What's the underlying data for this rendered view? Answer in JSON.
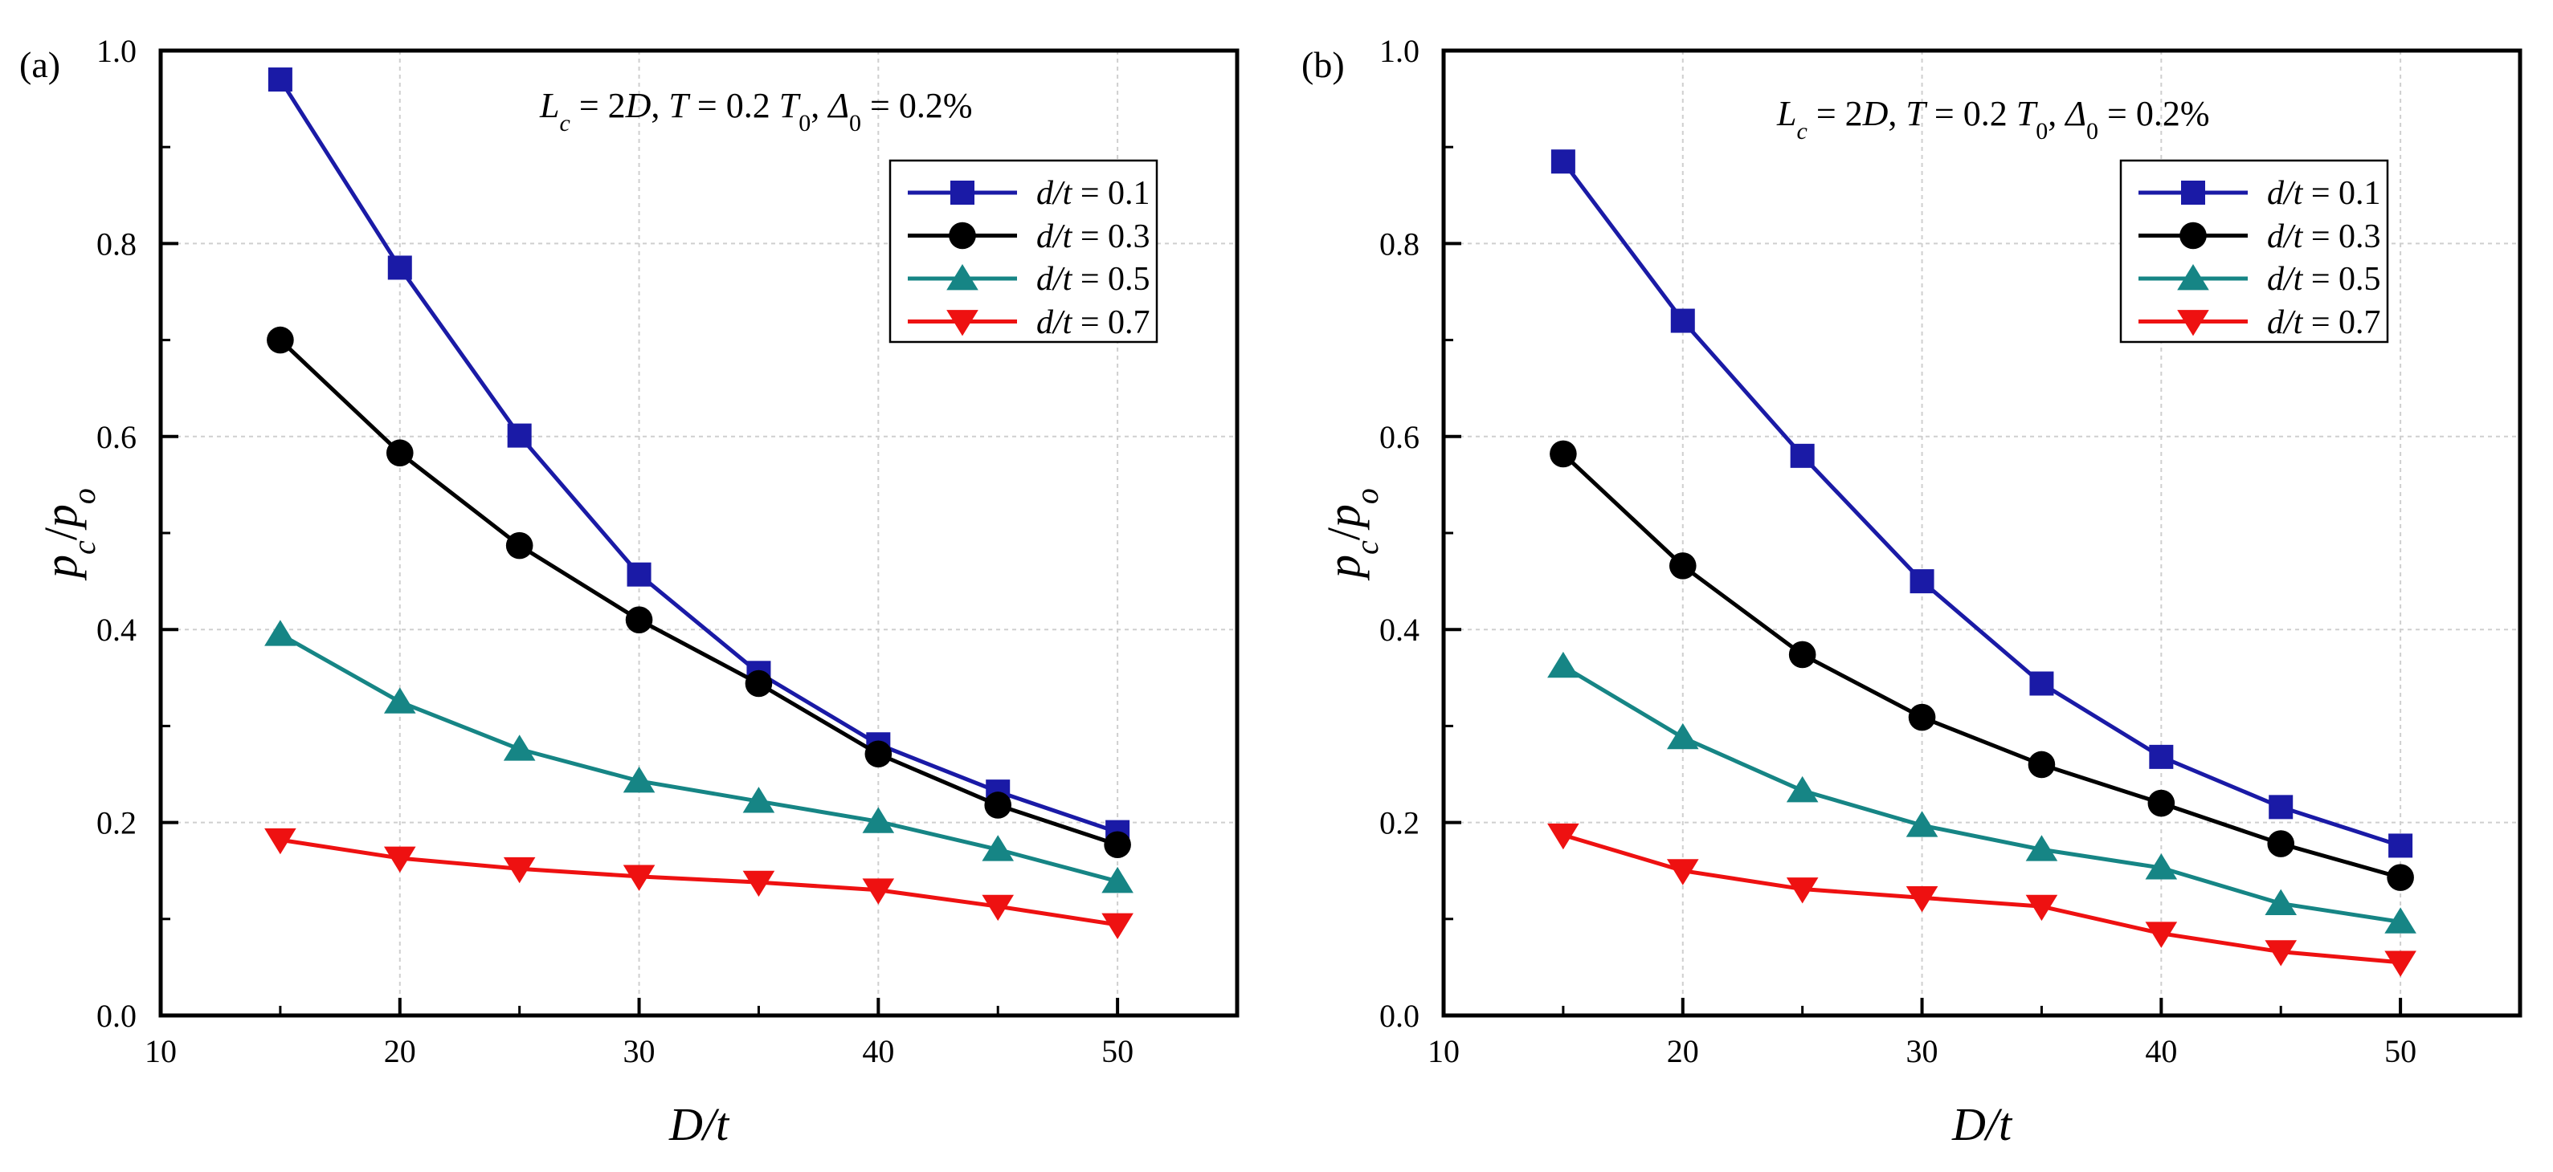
{
  "chart_data": [
    {
      "type": "line",
      "panel_label": "(a)",
      "annotation": {
        "l": "L",
        "c": "c",
        "eq1": " = 2",
        "d": "D",
        "comma1": ",  ",
        "t": "T",
        "eq2": " = 0.2 ",
        "t2": "T",
        "zero": "0",
        "comma2": ", ",
        "delta": "Δ",
        "zero2": "0",
        "eq3": " = 0.2%"
      },
      "xlabel": "D/t",
      "ylabel": {
        "p": "p",
        "c": "c",
        "slash": "/",
        "p2": "p",
        "o": "o"
      },
      "xlim": [
        10,
        55
      ],
      "ylim": [
        0,
        1.0
      ],
      "xticks": [
        10,
        20,
        30,
        40,
        50
      ],
      "xtick_labels": [
        "10",
        "20",
        "30",
        "40",
        "50"
      ],
      "yticks": [
        0,
        0.2,
        0.4,
        0.6,
        0.8,
        1.0
      ],
      "ytick_labels": [
        "0.0",
        "0.2",
        "0.4",
        "0.6",
        "0.8",
        "1.0"
      ],
      "grid": true,
      "legend_position": "top-right",
      "x": [
        15,
        20,
        25,
        30,
        35,
        40,
        45,
        50
      ],
      "series": [
        {
          "name": "d/t = 0.1",
          "name_var": "d/t",
          "name_val": " = 0.1",
          "marker": "square",
          "color": "#1a1aa6",
          "values": [
            0.97,
            0.775,
            0.601,
            0.457,
            0.355,
            0.281,
            0.232,
            0.19
          ]
        },
        {
          "name": "d/t = 0.3",
          "name_var": "d/t",
          "name_val": " = 0.3",
          "marker": "circle",
          "color": "#000000",
          "values": [
            0.7,
            0.583,
            0.487,
            0.41,
            0.344,
            0.271,
            0.218,
            0.177
          ]
        },
        {
          "name": "d/t = 0.5",
          "name_var": "d/t",
          "name_val": " = 0.5",
          "marker": "triangle-up",
          "color": "#168585",
          "values": [
            0.395,
            0.325,
            0.276,
            0.243,
            0.222,
            0.201,
            0.172,
            0.139
          ]
        },
        {
          "name": "d/t = 0.7",
          "name_var": "d/t",
          "name_val": " = 0.7",
          "marker": "triangle-down",
          "color": "#ee1111",
          "values": [
            0.182,
            0.163,
            0.152,
            0.144,
            0.138,
            0.13,
            0.113,
            0.094
          ]
        }
      ]
    },
    {
      "type": "line",
      "panel_label": "(b)",
      "annotation": {
        "l": "L",
        "c": "c",
        "eq1": " = 2",
        "d": "D",
        "comma1": ",  ",
        "t": "T",
        "eq2": " = 0.2 ",
        "t2": "T",
        "zero": "0",
        "comma2": ", ",
        "delta": "Δ",
        "zero2": "0",
        "eq3": " = 0.2%"
      },
      "xlabel": "D/t",
      "ylabel": {
        "p": "p",
        "c": "c",
        "slash": "/",
        "p2": "p",
        "o": "o"
      },
      "xlim": [
        10,
        55
      ],
      "ylim": [
        0,
        1.0
      ],
      "xticks": [
        10,
        20,
        30,
        40,
        50
      ],
      "xtick_labels": [
        "10",
        "20",
        "30",
        "40",
        "50"
      ],
      "yticks": [
        0,
        0.2,
        0.4,
        0.6,
        0.8,
        1.0
      ],
      "ytick_labels": [
        "0.0",
        "0.2",
        "0.4",
        "0.6",
        "0.8",
        "1.0"
      ],
      "grid": true,
      "legend_position": "top-right",
      "x": [
        15,
        20,
        25,
        30,
        35,
        40,
        45,
        50
      ],
      "series": [
        {
          "name": "d/t = 0.1",
          "name_var": "d/t",
          "name_val": " = 0.1",
          "marker": "square",
          "color": "#1a1aa6",
          "values": [
            0.885,
            0.72,
            0.58,
            0.45,
            0.344,
            0.268,
            0.216,
            0.176
          ]
        },
        {
          "name": "d/t = 0.3",
          "name_var": "d/t",
          "name_val": " = 0.3",
          "marker": "circle",
          "color": "#000000",
          "values": [
            0.582,
            0.466,
            0.374,
            0.309,
            0.26,
            0.22,
            0.178,
            0.143
          ]
        },
        {
          "name": "d/t = 0.5",
          "name_var": "d/t",
          "name_val": " = 0.5",
          "marker": "triangle-up",
          "color": "#168585",
          "values": [
            0.362,
            0.288,
            0.233,
            0.197,
            0.172,
            0.153,
            0.116,
            0.097
          ]
        },
        {
          "name": "d/t = 0.7",
          "name_var": "d/t",
          "name_val": " = 0.7",
          "marker": "triangle-down",
          "color": "#ee1111",
          "values": [
            0.187,
            0.15,
            0.131,
            0.122,
            0.113,
            0.085,
            0.066,
            0.055
          ]
        }
      ]
    }
  ]
}
